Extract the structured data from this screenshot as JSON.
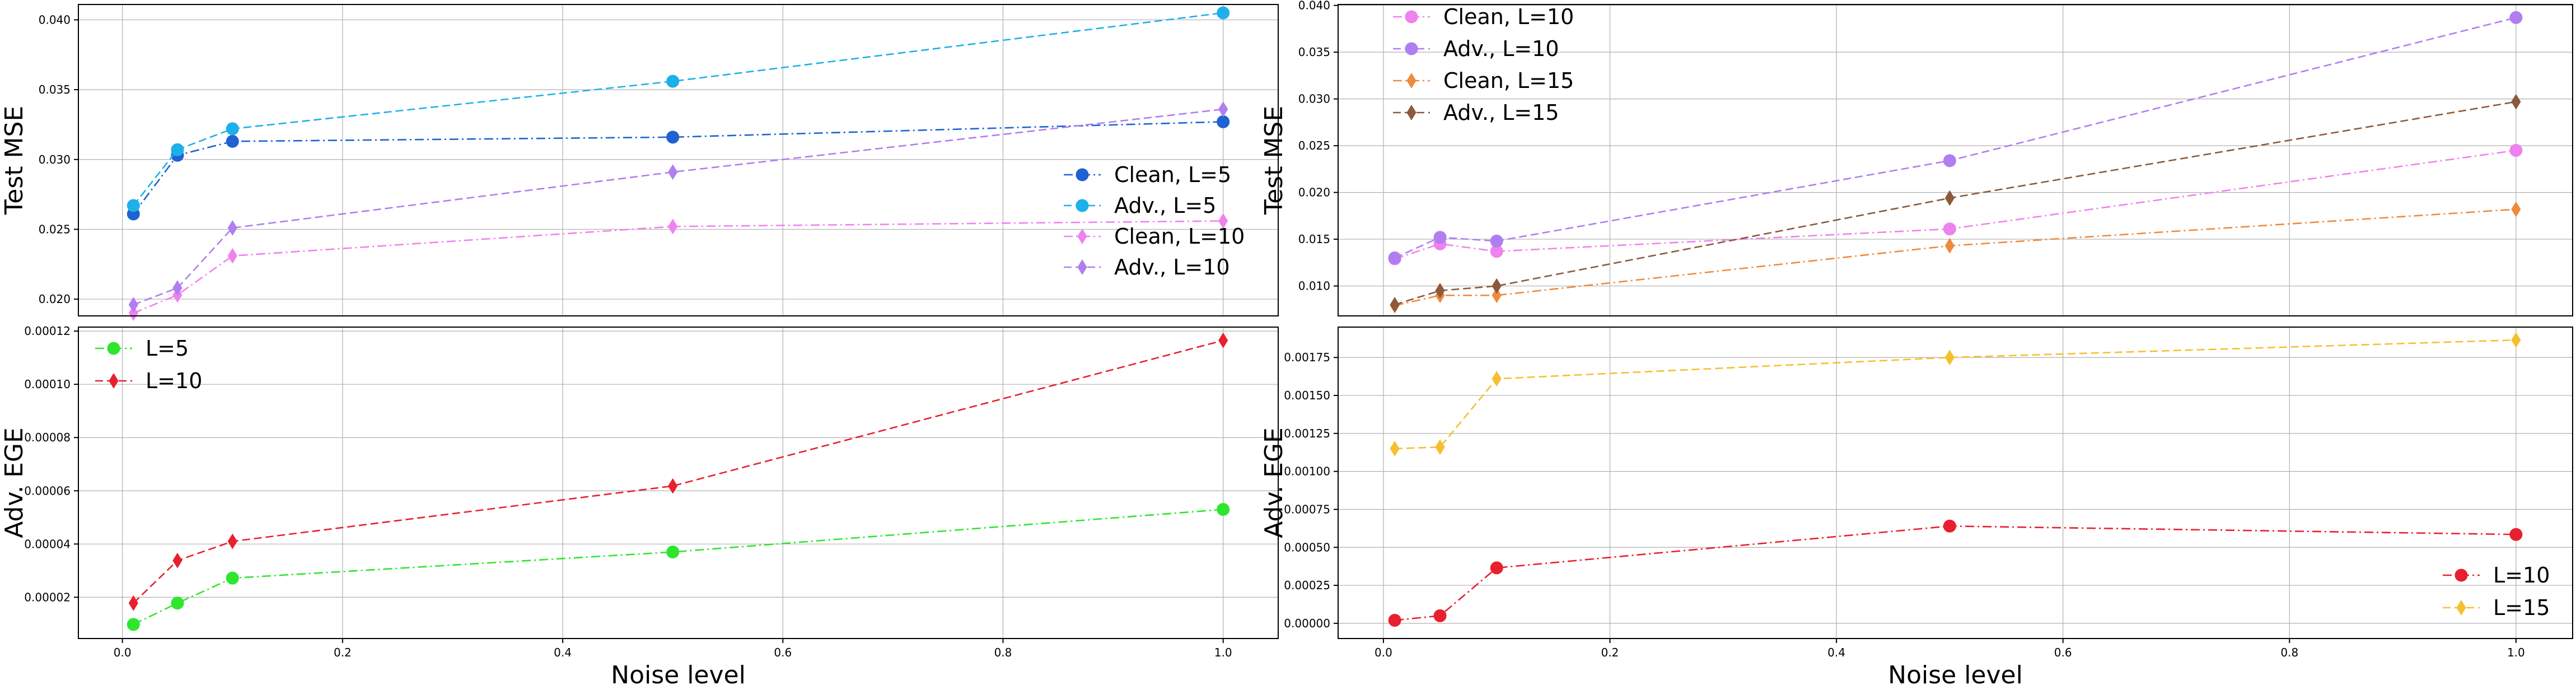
{
  "figure": {
    "xlabel": "Noise level"
  },
  "colors": {
    "grid": "#b0b0b0",
    "frame": "#000000",
    "clean_l5": "#1f62d2",
    "adv_l5": "#1eb0ea",
    "clean_l10_mse": "#ee82ee",
    "adv_l10_mse": "#b07ef0",
    "clean_l15": "#f08a3c",
    "adv_l15": "#8c5a3c",
    "ege_l5": "#2ee62e",
    "ege_l10": "#e8202e",
    "ege_l15": "#f5c030"
  },
  "chart_data": [
    {
      "id": "left-top",
      "type": "line",
      "xlabel": "",
      "ylabel": "Test MSE",
      "xlim": [
        -0.04,
        1.05
      ],
      "ylim": [
        0.0188,
        0.0411
      ],
      "x_ticks": [],
      "x_tick_labels": [],
      "y_ticks": [
        0.02,
        0.025,
        0.03,
        0.035,
        0.04
      ],
      "y_tick_labels": [
        "0.020",
        "0.025",
        "0.030",
        "0.035",
        "0.040"
      ],
      "legend_loc": "lower-right",
      "x": [
        0.01,
        0.05,
        0.1,
        0.5,
        1.0
      ],
      "series": [
        {
          "name": "Clean, L=5",
          "values": [
            0.0261,
            0.0303,
            0.0313,
            0.0316,
            0.0327
          ],
          "color": "#1f62d2",
          "marker": "circle",
          "dash": "dashdot"
        },
        {
          "name": "Adv., L=5",
          "values": [
            0.0267,
            0.0307,
            0.0322,
            0.0356,
            0.0405
          ],
          "color": "#1eb0ea",
          "marker": "circle",
          "dash": "dashed"
        },
        {
          "name": "Clean, L=10",
          "values": [
            0.019,
            0.0203,
            0.0231,
            0.0252,
            0.0256
          ],
          "color": "#ee82ee",
          "marker": "diamond",
          "dash": "dashdot"
        },
        {
          "name": "Adv., L=10",
          "values": [
            0.0196,
            0.0208,
            0.0251,
            0.0291,
            0.0336
          ],
          "color": "#b07ef0",
          "marker": "diamond",
          "dash": "dashed"
        }
      ]
    },
    {
      "id": "left-bottom",
      "type": "line",
      "xlabel": "Noise level",
      "ylabel": "Adv. EGE",
      "xlim": [
        -0.04,
        1.05
      ],
      "ylim": [
        4.5e-06,
        0.0001215
      ],
      "x_ticks": [
        0.0,
        0.2,
        0.4,
        0.6,
        0.8,
        1.0
      ],
      "x_tick_labels": [
        "0.0",
        "0.2",
        "0.4",
        "0.6",
        "0.8",
        "1.0"
      ],
      "y_ticks": [
        2e-05,
        4e-05,
        6e-05,
        8e-05,
        0.0001,
        0.00012
      ],
      "y_tick_labels": [
        "0.00002",
        "0.00004",
        "0.00006",
        "0.00008",
        "0.00010",
        "0.00012"
      ],
      "legend_loc": "upper-left",
      "x": [
        0.01,
        0.05,
        0.1,
        0.5,
        1.0
      ],
      "series": [
        {
          "name": "L=5",
          "values": [
            9.8e-06,
            1.78e-05,
            2.72e-05,
            3.7e-05,
            5.3e-05
          ],
          "color": "#2ee62e",
          "marker": "circle",
          "dash": "dashdot"
        },
        {
          "name": "L=10",
          "values": [
            1.78e-05,
            3.38e-05,
            4.1e-05,
            6.18e-05,
            0.0001165
          ],
          "color": "#e8202e",
          "marker": "diamond",
          "dash": "dashed"
        }
      ]
    },
    {
      "id": "right-top",
      "type": "line",
      "xlabel": "",
      "ylabel": "Test MSE",
      "xlim": [
        -0.04,
        1.05
      ],
      "ylim": [
        0.0068,
        0.0401
      ],
      "x_ticks": [],
      "x_tick_labels": [],
      "y_ticks": [
        0.01,
        0.015,
        0.02,
        0.025,
        0.03,
        0.035,
        0.04
      ],
      "y_tick_labels": [
        "0.010",
        "0.015",
        "0.020",
        "0.025",
        "0.030",
        "0.035",
        "0.040"
      ],
      "legend_loc": "upper-left",
      "x": [
        0.01,
        0.05,
        0.1,
        0.5,
        1.0
      ],
      "series": [
        {
          "name": "Clean, L=10",
          "values": [
            0.0129,
            0.0145,
            0.0137,
            0.0161,
            0.0245
          ],
          "color": "#ee82ee",
          "marker": "circle",
          "dash": "dashdot"
        },
        {
          "name": "Adv., L=10",
          "values": [
            0.013,
            0.0152,
            0.0148,
            0.0234,
            0.0387
          ],
          "color": "#b07ef0",
          "marker": "circle",
          "dash": "dashed"
        },
        {
          "name": "Clean, L=15",
          "values": [
            0.0079,
            0.009,
            0.009,
            0.0143,
            0.0182
          ],
          "color": "#f08a3c",
          "marker": "diamond",
          "dash": "dashdot"
        },
        {
          "name": "Adv., L=15",
          "values": [
            0.008,
            0.0095,
            0.01,
            0.0194,
            0.0297
          ],
          "color": "#8c5a3c",
          "marker": "diamond",
          "dash": "dashed"
        }
      ]
    },
    {
      "id": "right-bottom",
      "type": "line",
      "xlabel": "Noise level",
      "ylabel": "Adv. EGE",
      "xlim": [
        -0.04,
        1.05
      ],
      "ylim": [
        -0.0001,
        0.00195
      ],
      "x_ticks": [
        0.0,
        0.2,
        0.4,
        0.6,
        0.8,
        1.0
      ],
      "x_tick_labels": [
        "0.0",
        "0.2",
        "0.4",
        "0.6",
        "0.8",
        "1.0"
      ],
      "y_ticks": [
        0.0,
        0.00025,
        0.0005,
        0.00075,
        0.001,
        0.00125,
        0.0015,
        0.00175
      ],
      "y_tick_labels": [
        "0.00000",
        "0.00025",
        "0.00050",
        "0.00075",
        "0.00100",
        "0.00125",
        "0.00150",
        "0.00175"
      ],
      "legend_loc": "lower-right",
      "x": [
        0.01,
        0.05,
        0.1,
        0.5,
        1.0
      ],
      "series": [
        {
          "name": "L=10",
          "values": [
            2e-05,
            5e-05,
            0.000365,
            0.00064,
            0.000585
          ],
          "color": "#e8202e",
          "marker": "circle",
          "dash": "dashdot"
        },
        {
          "name": "L=15",
          "values": [
            0.00115,
            0.00116,
            0.00161,
            0.00175,
            0.001865
          ],
          "color": "#f5c030",
          "marker": "diamond",
          "dash": "dashed"
        }
      ]
    }
  ]
}
